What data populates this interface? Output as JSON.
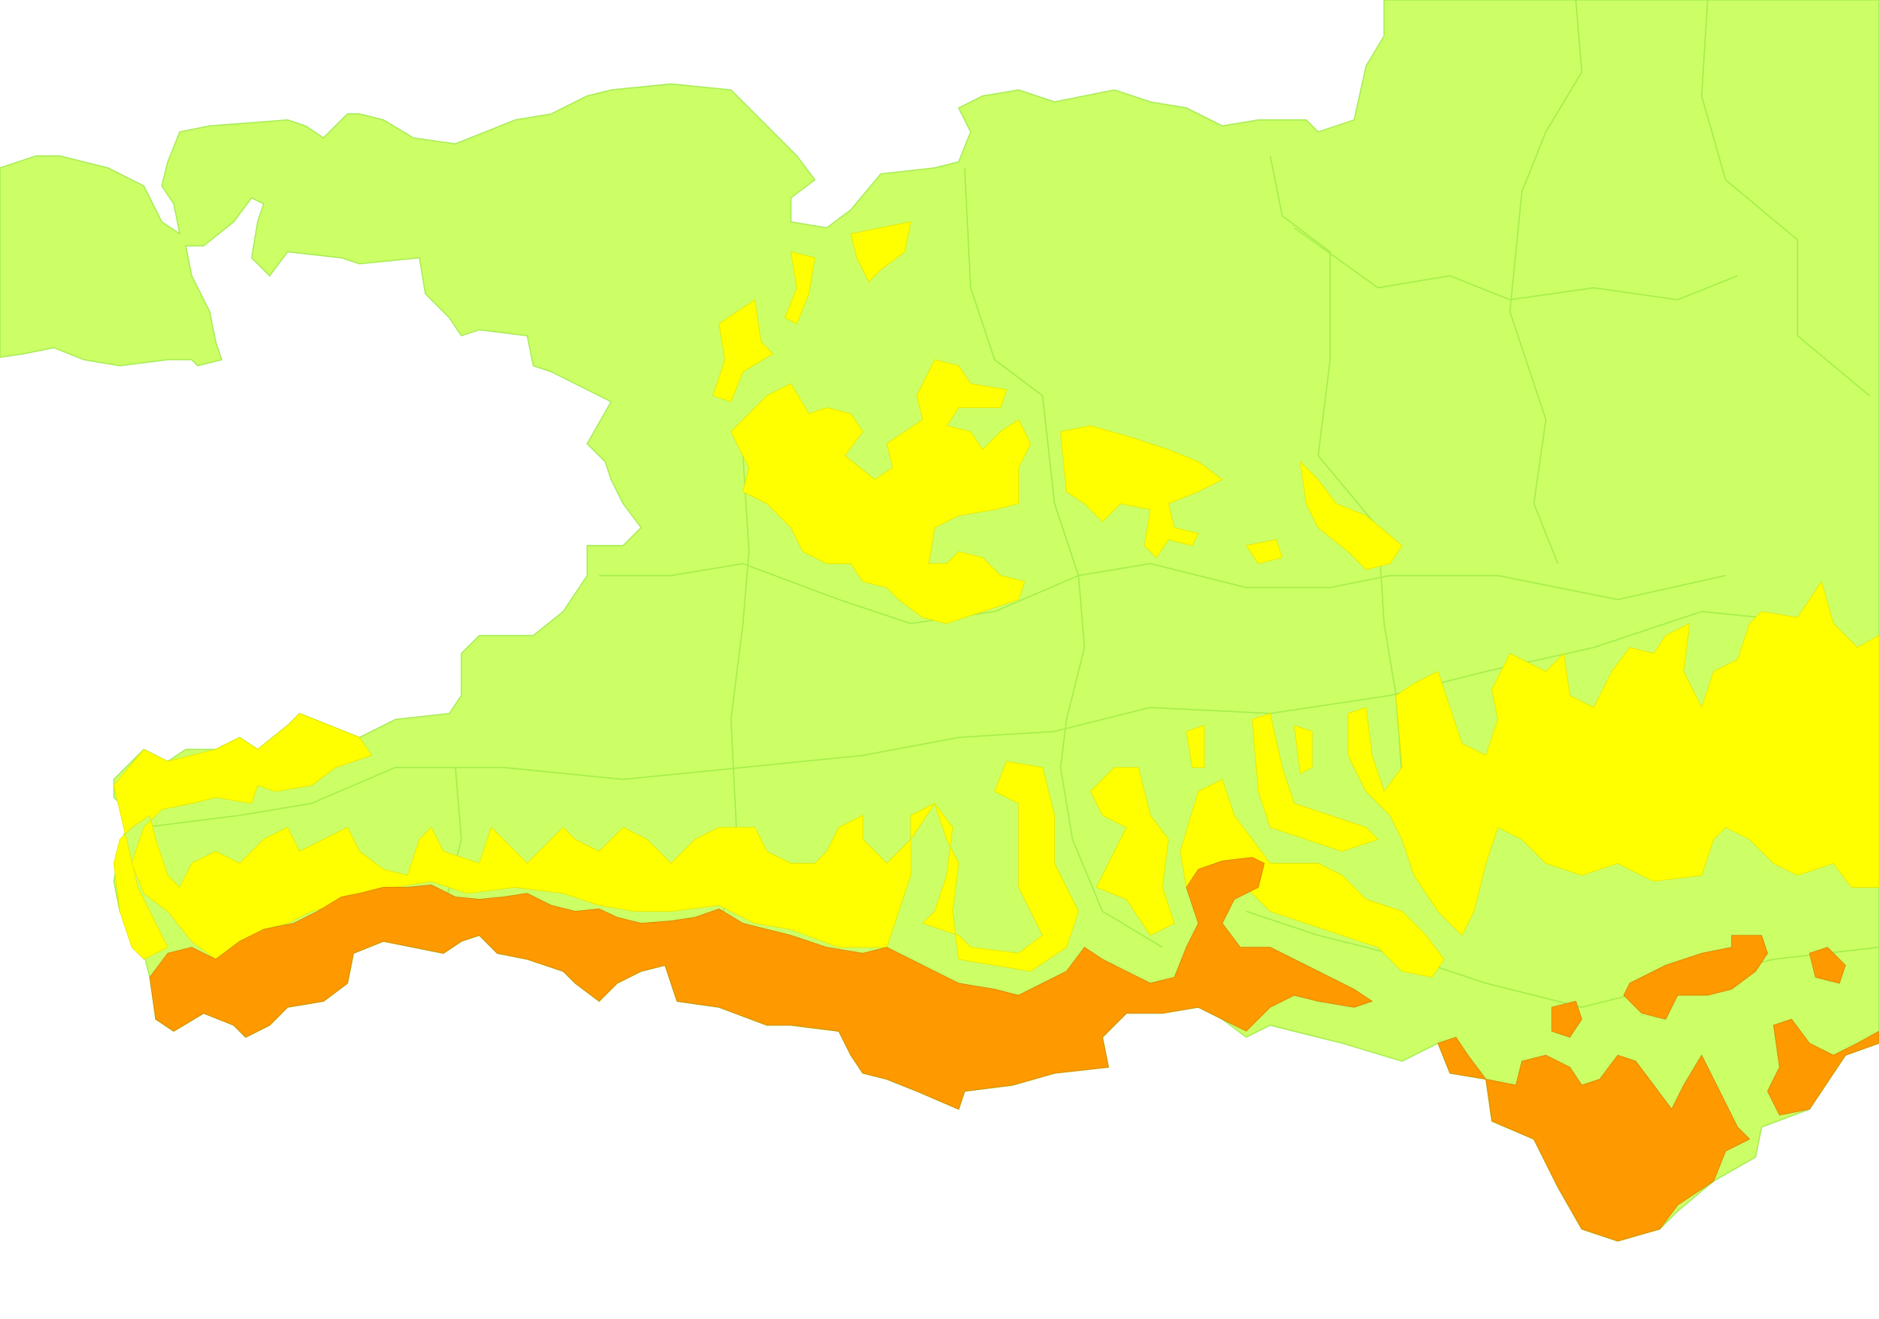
{
  "map": {
    "colors": {
      "background": "#ffffff",
      "land_base": "#ccff66",
      "zone_yellow": "#ffff00",
      "zone_orange": "#ff9900",
      "boundary_lines": "#a6ee4c"
    }
  }
}
